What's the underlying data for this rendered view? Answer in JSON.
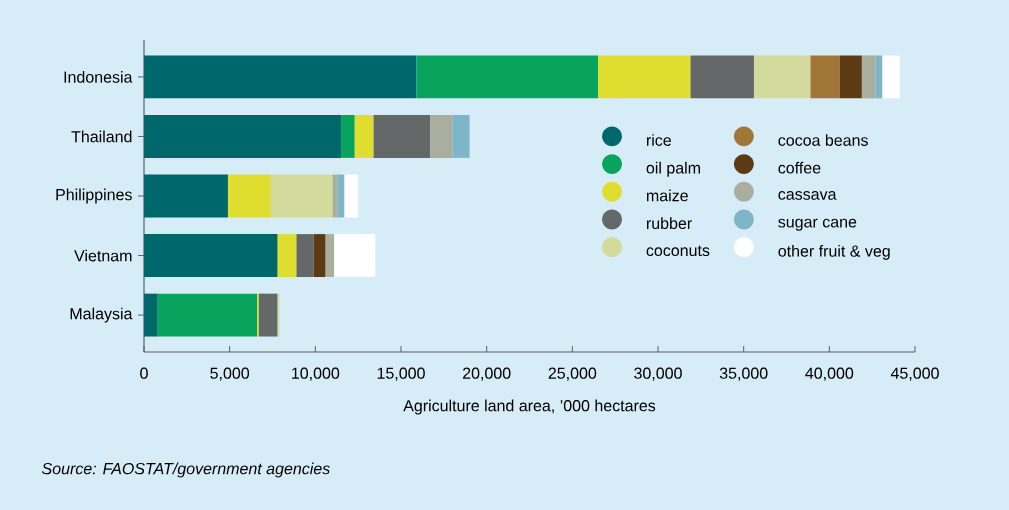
{
  "chart_data": {
    "type": "bar",
    "orientation": "horizontal",
    "stacked": true,
    "categories": [
      "Indonesia",
      "Thailand",
      "Philippines",
      "Vietnam",
      "Malaysia"
    ],
    "series": [
      {
        "name": "rice",
        "color": "#00676a",
        "values": [
          15900,
          11500,
          4900,
          7800,
          800
        ]
      },
      {
        "name": "oil palm",
        "color": "#08a45e",
        "values": [
          10600,
          800,
          null,
          null,
          5800
        ]
      },
      {
        "name": "maize",
        "color": "#dfdd2f",
        "values": [
          5400,
          1100,
          2500,
          1100,
          100
        ]
      },
      {
        "name": "rubber",
        "color": "#646868",
        "values": [
          3700,
          3300,
          null,
          1000,
          1100
        ]
      },
      {
        "name": "coconuts",
        "color": "#d2da9c",
        "values": [
          3300,
          null,
          3600,
          null,
          100
        ]
      },
      {
        "name": "cocoa beans",
        "color": "#a07737",
        "values": [
          1700,
          null,
          null,
          null,
          null
        ]
      },
      {
        "name": "coffee",
        "color": "#5c3b14",
        "values": [
          1300,
          null,
          null,
          700,
          null
        ]
      },
      {
        "name": "cassava",
        "color": "#aaae9e",
        "values": [
          800,
          1300,
          300,
          500,
          null
        ]
      },
      {
        "name": "sugar cane",
        "color": "#7fb6c7",
        "values": [
          400,
          1000,
          400,
          null,
          null
        ]
      },
      {
        "name": "other fruit & veg",
        "color": "#ffffff",
        "values": [
          1000,
          null,
          800,
          2400,
          null
        ]
      }
    ],
    "xlim": [
      0,
      45000
    ],
    "xticks": [
      0,
      {
        "value": 5000,
        "label": "5,000"
      },
      {
        "value": 10000,
        "label": "10,000"
      },
      {
        "value": 15000,
        "label": "15,000"
      },
      {
        "value": 20000,
        "label": "20,000"
      },
      {
        "value": 25000,
        "label": "25,000"
      },
      {
        "value": 30000,
        "label": "30,000"
      },
      {
        "value": 35000,
        "label": "35,000"
      },
      {
        "value": 40000,
        "label": "40,000"
      },
      {
        "value": 45000,
        "label": "45,000"
      }
    ],
    "xlabel": "Agriculture land area, ’000 hectares",
    "legend": "right",
    "grid": false,
    "annotations": [
      "*Source: FAOSTAT/government agencies*"
    ]
  }
}
